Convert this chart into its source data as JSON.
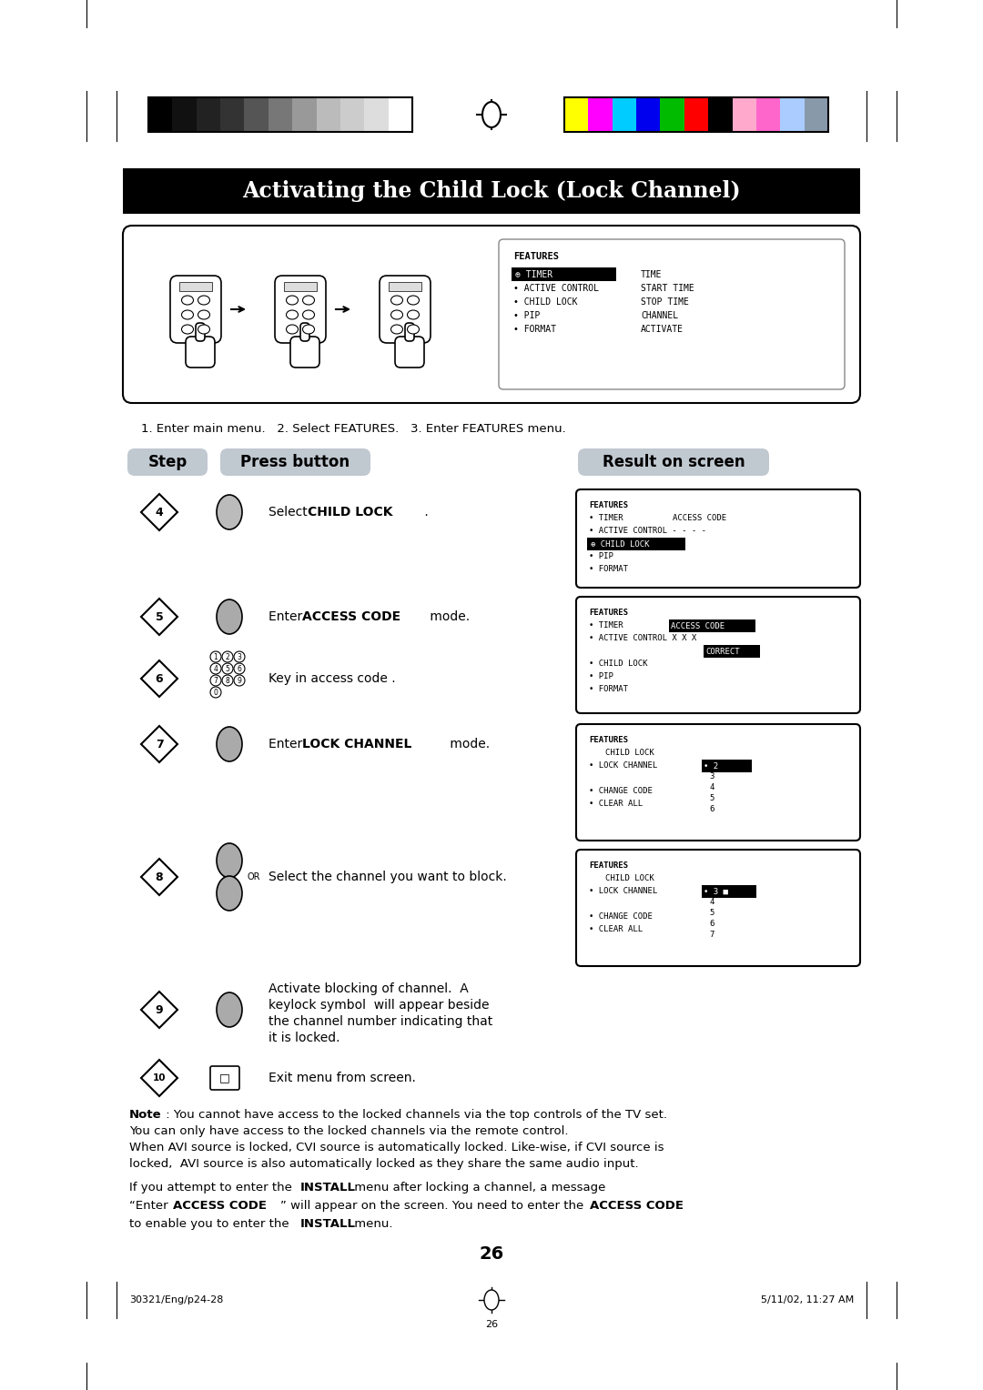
{
  "page_bg": "#ffffff",
  "title_text": "Activating the Child Lock (Lock Channel)",
  "title_bg": "#000000",
  "title_color": "#ffffff",
  "step_header_bg": "#c0c8d0",
  "grayscale_bars": [
    "#000000",
    "#111111",
    "#222222",
    "#333333",
    "#555555",
    "#777777",
    "#999999",
    "#bbbbbb",
    "#cccccc",
    "#dddddd",
    "#ffffff"
  ],
  "color_bars": [
    "#ffff00",
    "#ff00ff",
    "#00ccff",
    "#0000ee",
    "#00bb00",
    "#ff0000",
    "#000000",
    "#ffaacc",
    "#ff66cc",
    "#aaccff",
    "#8899aa"
  ],
  "footer_left": "30321/Eng/p24-28",
  "footer_center_page": "26",
  "footer_right": "5/11/02, 11:27 AM",
  "page_number": "26"
}
